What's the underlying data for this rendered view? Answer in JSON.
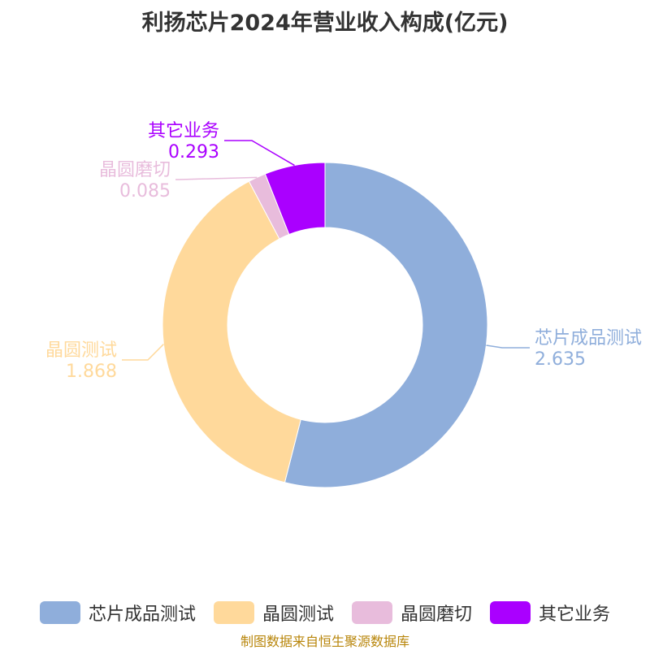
{
  "title": "利扬芯片2024年营业收入构成(亿元)",
  "source": "制图数据来自恒生聚源数据库",
  "chart_data": {
    "type": "pie",
    "donut": true,
    "title": "利扬芯片2024年营业收入构成(亿元)",
    "slices": [
      {
        "name": "芯片成品测试",
        "value": 2.635,
        "color": "#8faedb"
      },
      {
        "name": "晶圆测试",
        "value": 1.868,
        "color": "#ffd99b"
      },
      {
        "name": "晶圆磨切",
        "value": 0.085,
        "color": "#e8bcdc"
      },
      {
        "name": "其它业务",
        "value": 0.293,
        "color": "#aa00ff"
      }
    ],
    "legend_position": "bottom"
  },
  "legend": [
    {
      "label": "芯片成品测试",
      "color": "#8faedb"
    },
    {
      "label": "晶圆测试",
      "color": "#ffd99b"
    },
    {
      "label": "晶圆磨切",
      "color": "#e8bcdc"
    },
    {
      "label": "其它业务",
      "color": "#aa00ff"
    }
  ]
}
